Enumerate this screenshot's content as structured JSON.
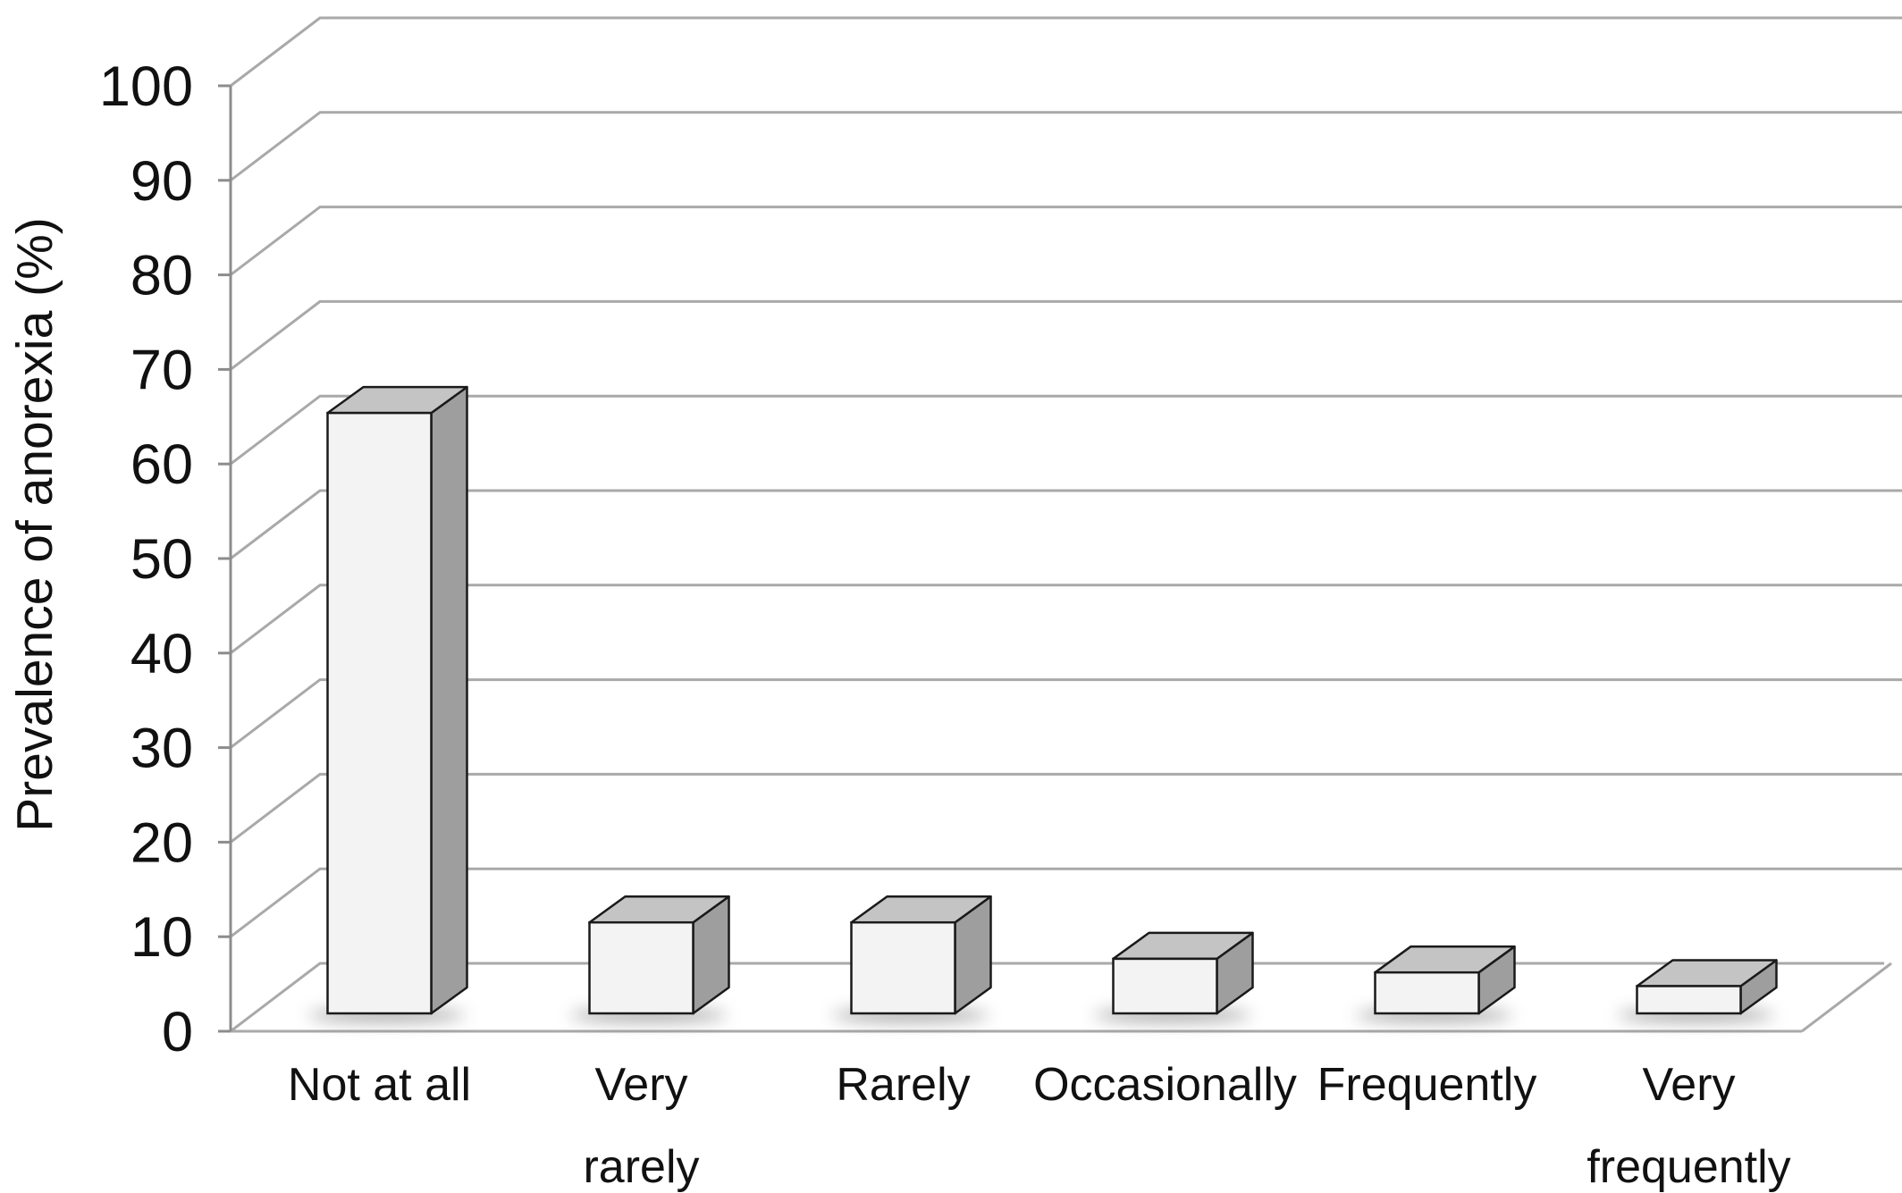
{
  "chart_data": {
    "type": "bar",
    "style": "3d-column",
    "title": "",
    "xlabel": "",
    "ylabel": "Prevalence of anorexia (%)",
    "ylim": [
      0,
      100
    ],
    "yticks": [
      0,
      10,
      20,
      30,
      40,
      50,
      60,
      70,
      80,
      90,
      100
    ],
    "grid": true,
    "legend": "none",
    "categories": [
      [
        "Not at all"
      ],
      [
        "Very",
        "rarely"
      ],
      [
        "Rarely"
      ],
      [
        "Occasionally"
      ],
      [
        "Frequently"
      ],
      [
        "Very",
        "frequently"
      ]
    ],
    "values": [
      66,
      10,
      10,
      6,
      4.5,
      3
    ],
    "colors": {
      "bar_front": "#f3f3f3",
      "bar_top": "#c4c4c4",
      "bar_side": "#9e9e9e",
      "bar_edge": "#1a1a1a",
      "grid": "#a9a9a9",
      "axis": "#8c8c8c",
      "text": "#111111"
    }
  }
}
